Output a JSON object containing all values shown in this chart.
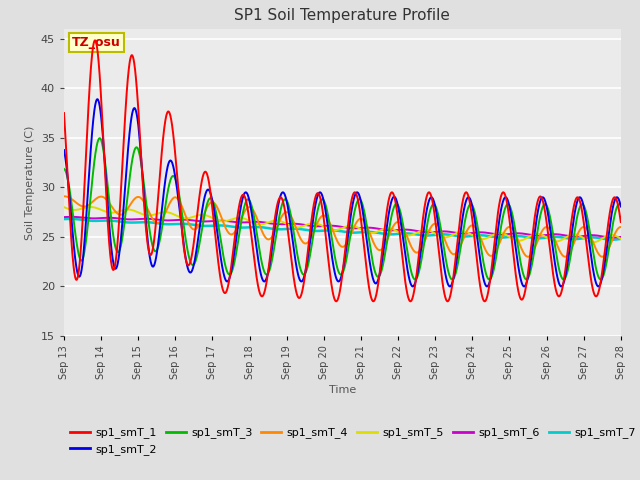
{
  "title": "SP1 Soil Temperature Profile",
  "xlabel": "Time",
  "ylabel": "Soil Temperature (C)",
  "ylim": [
    15,
    46
  ],
  "yticks": [
    15,
    20,
    25,
    30,
    35,
    40,
    45
  ],
  "x_tick_labels": [
    "Sep 13",
    "Sep 14",
    "Sep 15",
    "Sep 16",
    "Sep 17",
    "Sep 18",
    "Sep 19",
    "Sep 20",
    "Sep 21",
    "Sep 22",
    "Sep 23",
    "Sep 24",
    "Sep 25",
    "Sep 26",
    "Sep 27",
    "Sep 28"
  ],
  "tz_label": "TZ_osu",
  "series_colors": {
    "sp1_smT_1": "#FF0000",
    "sp1_smT_2": "#0000EE",
    "sp1_smT_3": "#00BB00",
    "sp1_smT_4": "#FF8800",
    "sp1_smT_5": "#DDDD00",
    "sp1_smT_6": "#CC00CC",
    "sp1_smT_7": "#00CCCC"
  },
  "bg_color": "#E0E0E0",
  "plot_bg_color": "#EBEBEB"
}
